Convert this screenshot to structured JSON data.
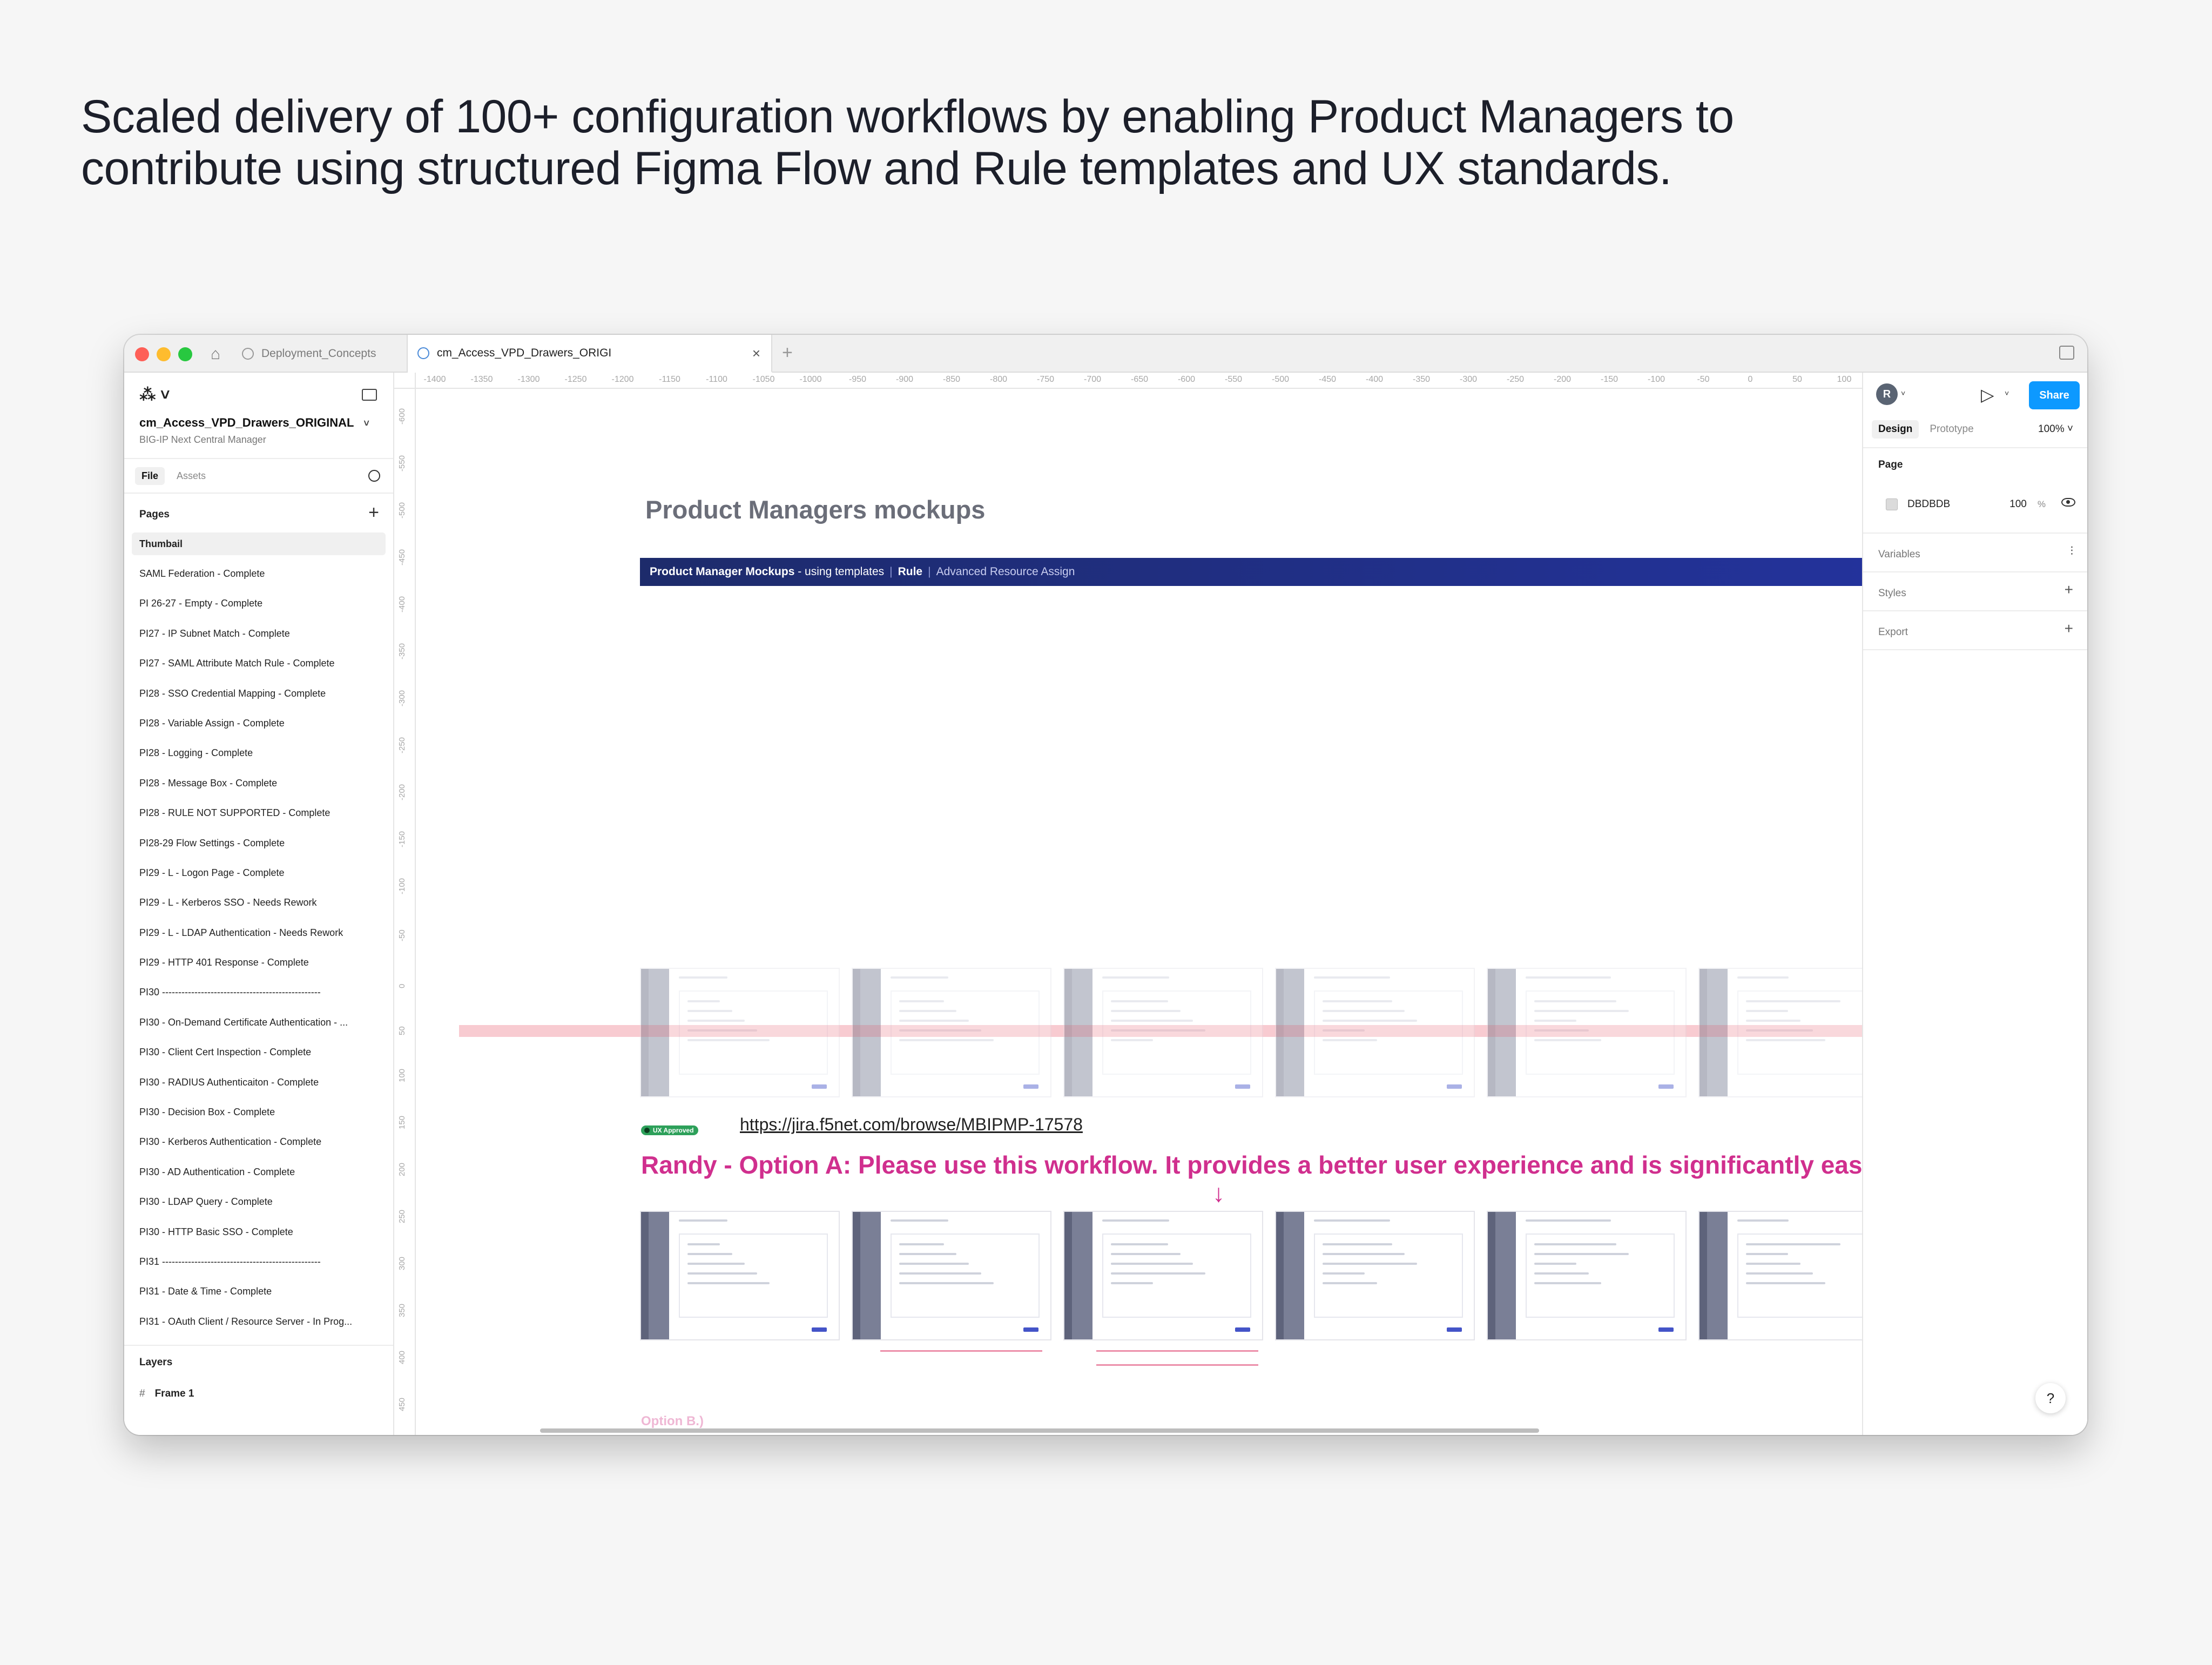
{
  "headline": "Scaled delivery of 100+ configuration workflows by enabling Product Managers to contribute using structured Figma Flow and Rule templates and UX standards.",
  "window": {
    "tabs": [
      {
        "label": "Deployment_Concepts"
      },
      {
        "label": "cm_Access_VPD_Drawers_ORIGI"
      }
    ],
    "home_icon": "home-icon",
    "add_tab_icon": "plus-icon"
  },
  "sidebar": {
    "file_name": "cm_Access_VPD_Drawers_ORIGINAL",
    "project": "BIG-IP Next Central Manager",
    "tabs": [
      "File",
      "Assets"
    ],
    "pages_heading": "Pages",
    "pages": [
      "Thumbail",
      "SAML Federation - Complete",
      "PI 26-27 - Empty - Complete",
      "PI27 - IP Subnet Match - Complete",
      "PI27 - SAML Attribute Match Rule - Complete",
      "PI28 - SSO Credential Mapping - Complete",
      "PI28 - Variable Assign - Complete",
      "PI28 - Logging - Complete",
      "PI28 - Message Box - Complete",
      "PI28 - RULE NOT SUPPORTED - Complete",
      "PI28-29 Flow Settings - Complete",
      "PI29 - L - Logon Page - Complete",
      "PI29 - L - Kerberos SSO - Needs Rework",
      "PI29 - L - LDAP Authentication - Needs Rework",
      "PI29 - HTTP 401 Response - Complete",
      "PI30 -------------------------------------------------",
      "PI30 - On-Demand Certificate Authentication - ...",
      "PI30 - Client Cert Inspection - Complete",
      "PI30 - RADIUS Authenticaiton - Complete",
      "PI30 - Decision Box - Complete",
      "PI30 - Kerberos Authentication - Complete",
      "PI30 - AD Authentication - Complete",
      "PI30 - LDAP Query - Complete",
      "PI30 - HTTP Basic SSO - Complete",
      "PI31 -------------------------------------------------",
      "PI31 - Date & Time - Complete",
      "PI31 - OAuth Client / Resource Server  - In Prog..."
    ],
    "layers_heading": "Layers",
    "layers": [
      "Frame 1"
    ]
  },
  "canvas": {
    "ruler_x": [
      "-1400",
      "-1350",
      "-1300",
      "-1250",
      "-1200",
      "-1150",
      "-1100",
      "-1050",
      "-1000",
      "-950",
      "-900",
      "-850",
      "-800",
      "-750",
      "-700",
      "-650",
      "-600",
      "-550",
      "-500",
      "-450",
      "-400",
      "-350",
      "-300",
      "-250",
      "-200",
      "-150",
      "-100",
      "-50",
      "0",
      "50",
      "100"
    ],
    "ruler_y": [
      "-600",
      "-550",
      "-500",
      "-450",
      "-400",
      "-350",
      "-300",
      "-250",
      "-200",
      "-150",
      "-100",
      "-50",
      "0",
      "50",
      "100",
      "150",
      "200",
      "250",
      "300",
      "350",
      "400",
      "450"
    ],
    "section_title": "Product Managers mockups",
    "banner": {
      "lead": "Product Manager Mockups",
      "lead_suffix": " - using templates",
      "type": "Rule",
      "name": "Advanced Resource Assign"
    },
    "approved_badge": "UX Approved",
    "jira_link": "https://jira.f5net.com/browse/MBIPMP-17578",
    "option_a": "Randy - Option A: Please use this workflow. It provides a better user experience and is significantly easier to im",
    "arrow": "↓",
    "option_b": "Option B.)"
  },
  "right_panel": {
    "avatar_initial": "R",
    "share_label": "Share",
    "tabs": [
      "Design",
      "Prototype"
    ],
    "zoom": "100%",
    "page_heading": "Page",
    "page_color": "DBDBDB",
    "page_opacity": "100",
    "page_opacity_unit": "%",
    "variables": "Variables",
    "styles": "Styles",
    "export": "Export",
    "help": "?"
  },
  "colors": {
    "accent": "#0d99ff",
    "banner": "#1d2b6b",
    "option_pink": "#d02f8e",
    "approved_green": "#2da05a"
  }
}
